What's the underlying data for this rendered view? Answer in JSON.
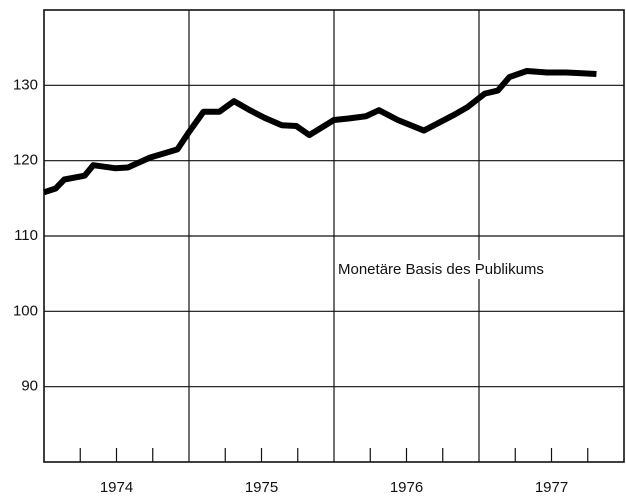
{
  "chart_data": {
    "type": "line",
    "annotation": "Monetäre Basis des Publikums",
    "categories": [
      "1974",
      "1975",
      "1976",
      "1977"
    ],
    "x": [
      1974.0,
      1974.08,
      1974.14,
      1974.28,
      1974.34,
      1974.49,
      1974.58,
      1974.73,
      1974.92,
      1975.0,
      1975.1,
      1975.21,
      1975.31,
      1975.41,
      1975.52,
      1975.64,
      1975.74,
      1975.83,
      1976.0,
      1976.1,
      1976.22,
      1976.31,
      1976.44,
      1976.62,
      1976.82,
      1976.92,
      1977.04,
      1977.13,
      1977.21,
      1977.33,
      1977.47,
      1977.6,
      1977.71,
      1977.81
    ],
    "values": [
      115.8,
      116.3,
      117.5,
      118.0,
      119.4,
      119.0,
      119.1,
      120.4,
      121.5,
      123.8,
      126.5,
      126.5,
      127.9,
      126.8,
      125.7,
      124.7,
      124.6,
      123.4,
      125.4,
      125.6,
      125.9,
      126.7,
      125.4,
      124.0,
      126.0,
      127.1,
      128.9,
      129.3,
      131.1,
      131.9,
      131.7,
      131.7,
      131.6,
      131.5
    ],
    "color": "#000000",
    "xlim": [
      1974,
      1978
    ],
    "xticks": [
      1975,
      1976,
      1977
    ],
    "xminorticks": [
      1974.25,
      1974.5,
      1974.75,
      1975.25,
      1975.5,
      1975.75,
      1976.25,
      1976.5,
      1976.75,
      1977.25,
      1977.5,
      1977.75
    ],
    "ylim": [
      80,
      140
    ],
    "yticks": [
      90,
      100,
      110,
      120,
      130
    ],
    "grid": true
  }
}
